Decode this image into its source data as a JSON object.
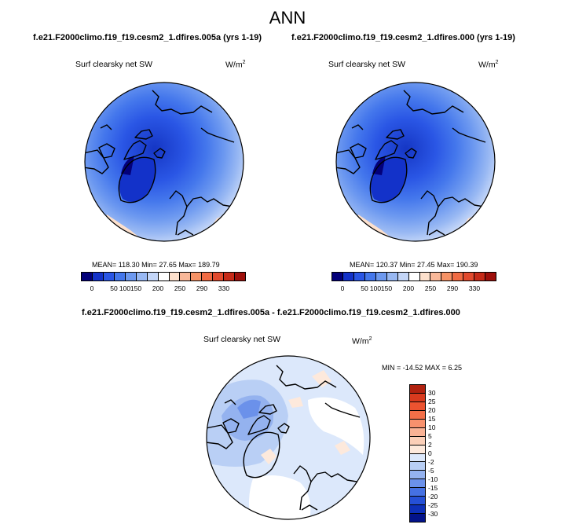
{
  "title": "ANN",
  "panels": [
    {
      "subtitle": "f.e21.F2000climo.f19_f19.cesm2_1.dfires.005a (yrs 1-19)",
      "variable": "Surf clearsky net SW",
      "units_base": "W/m",
      "units_exp": "2",
      "stats": "MEAN= 118.30  Min=  27.65  Max= 189.79"
    },
    {
      "subtitle": "f.e21.F2000climo.f19_f19.cesm2_1.dfires.000 (yrs 1-19)",
      "variable": "Surf clearsky net SW",
      "units_base": "W/m",
      "units_exp": "2",
      "stats": "MEAN= 120.37  Min=  27.45  Max= 190.39"
    }
  ],
  "colorbar_abs": {
    "labels": [
      "0",
      "50",
      "100",
      "150",
      "200",
      "250",
      "290",
      "330"
    ],
    "colors": [
      "#03007a",
      "#1332c9",
      "#2a56e5",
      "#4477ec",
      "#6d99f0",
      "#98b8f3",
      "#c4d6f8",
      "#ffffff",
      "#fde0cc",
      "#f9b899",
      "#f59266",
      "#f06b44",
      "#e24a2e",
      "#c62a18",
      "#9e0f0b"
    ]
  },
  "diff_panel": {
    "subtitle": "f.e21.F2000climo.f19_f19.cesm2_1.dfires.005a - f.e21.F2000climo.f19_f19.cesm2_1.dfires.000",
    "variable": "Surf clearsky net SW",
    "units_base": "W/m",
    "units_exp": "2",
    "stats": "MIN = -14.52 MAX =   6.25"
  },
  "colorbar_diff": {
    "labels": [
      "30",
      "25",
      "20",
      "15",
      "10",
      "5",
      "2",
      "0",
      "-2",
      "-5",
      "-10",
      "-15",
      "-20",
      "-25",
      "-30"
    ],
    "colors": [
      "#b1210f",
      "#d83a1e",
      "#ec5330",
      "#f36f48",
      "#f7916d",
      "#f9b295",
      "#fbcfb8",
      "#fde9dc",
      "#dce8fb",
      "#b9cff5",
      "#94b2ef",
      "#6b91ea",
      "#4571e3",
      "#2550d6",
      "#0e30b8",
      "#03138a"
    ]
  }
}
